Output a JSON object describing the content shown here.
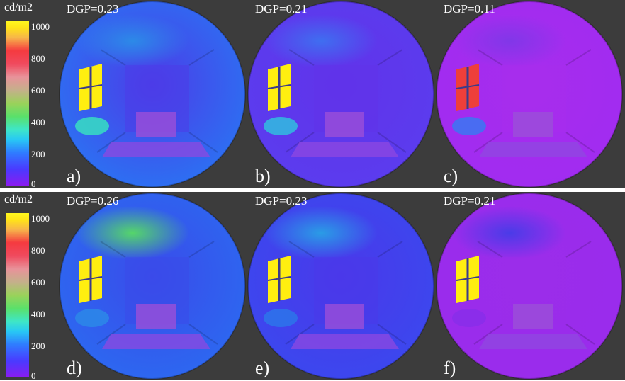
{
  "figure": {
    "rows": [
      {
        "scale": {
          "unit": "cd/m2",
          "ticks": [
            "1000",
            "800",
            "600",
            "400",
            "200",
            "0"
          ]
        },
        "panels": [
          {
            "dgp": "DGP=0.23",
            "letter": "a)",
            "window": "#ffee10",
            "lightfloor": "#37d7c4",
            "dome": "#2d6ff2",
            "ambient": "#4c3ce8",
            "ceiling": "#2c8ae8"
          },
          {
            "dgp": "DGP=0.21",
            "letter": "b)",
            "window": "#ffee10",
            "lightfloor": "#33b6e0",
            "dome": "#5b3cee",
            "ambient": "#6133ea",
            "ceiling": "#3f6ef0"
          },
          {
            "dgp": "DGP=0.11",
            "letter": "c)",
            "window": "#ee3f3a",
            "lightfloor": "#3f73f2",
            "dome": "#a12cf0",
            "ambient": "#a72ded",
            "ceiling": "#8137e8"
          }
        ]
      },
      {
        "scale": {
          "unit": "cd/m2",
          "ticks": [
            "1000",
            "800",
            "600",
            "400",
            "200",
            "0"
          ]
        },
        "panels": [
          {
            "dgp": "DGP=0.26",
            "letter": "d)",
            "window": "#ffee10",
            "lightfloor": "#2c86e8",
            "dome": "#2d67f0",
            "ambient": "#3a4bea",
            "ceiling": "#55d66a"
          },
          {
            "dgp": "DGP=0.23",
            "letter": "e)",
            "window": "#ffee10",
            "lightfloor": "#2e72ea",
            "dome": "#3c47ee",
            "ambient": "#4a39ea",
            "ceiling": "#2a9ce6"
          },
          {
            "dgp": "DGP=0.21",
            "letter": "f)",
            "window": "#ffee10",
            "lightfloor": "#8a2eea",
            "dome": "#9a2cec",
            "ambient": "#9b2dea",
            "ceiling": "#4a3be8"
          }
        ]
      }
    ]
  }
}
